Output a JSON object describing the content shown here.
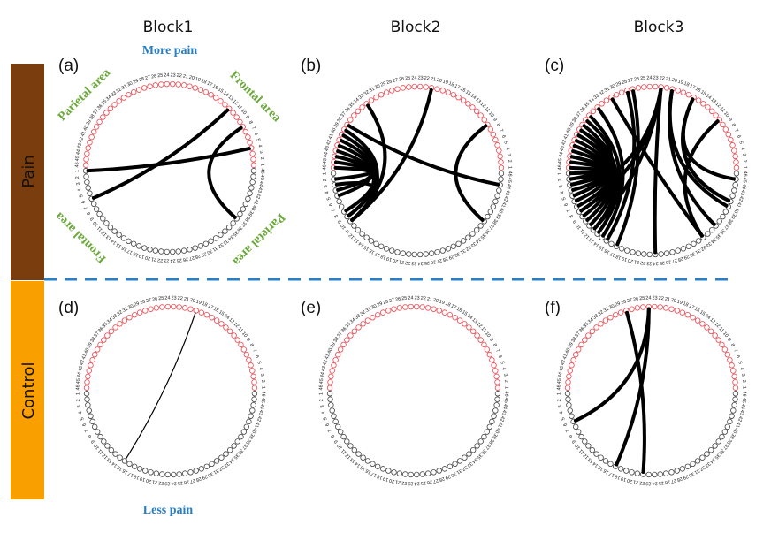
{
  "columns": [
    "Block1",
    "Block2",
    "Block3"
  ],
  "rows": [
    {
      "label": "Pain",
      "color": "#7a3e0e"
    },
    {
      "label": "Control",
      "color": "#f9a000"
    }
  ],
  "annotations": {
    "more_pain": "More pain",
    "less_pain": "Less pain",
    "parietal_left": "Parietal area",
    "frontal_right": "Frontal area",
    "frontal_left": "Frontal area",
    "parietal_right": "Parietal area"
  },
  "colors": {
    "separator": "#2a7fc4",
    "upper_hemisphere_nodes": "#e8474f",
    "lower_hemisphere_nodes": "#444444",
    "annotation_green": "#6aa83a",
    "annotation_blue": "#2a7fc4"
  },
  "nodes_per_hemisphere": 46,
  "panels": [
    {
      "label": "(a)",
      "edges": [
        [
          "R12",
          "B6"
        ],
        [
          "R4",
          "B1"
        ],
        [
          "R8",
          "B37"
        ]
      ]
    },
    {
      "label": "(b)",
      "edges": [
        [
          "R21",
          "B10"
        ],
        [
          "R33",
          "B10"
        ],
        [
          "R38",
          "B44"
        ],
        [
          "R9",
          "B37"
        ],
        [
          "R40",
          "B10"
        ],
        [
          "R41",
          "B10"
        ],
        [
          "R42",
          "B9"
        ],
        [
          "R43",
          "B10"
        ],
        [
          "R44",
          "B8"
        ],
        [
          "R45",
          "B4"
        ],
        [
          "R46",
          "B2"
        ],
        [
          "B3",
          "B10"
        ],
        [
          "R44",
          "B5"
        ],
        [
          "R39",
          "B9"
        ]
      ]
    },
    {
      "label": "(c)",
      "edges": [
        [
          "R22",
          "B24"
        ],
        [
          "R22",
          "B12"
        ],
        [
          "R22",
          "B8"
        ],
        [
          "R22",
          "B5"
        ],
        [
          "R20",
          "B36"
        ],
        [
          "R16",
          "B41"
        ],
        [
          "R16",
          "B45"
        ],
        [
          "R10",
          "B33"
        ],
        [
          "R31",
          "B33"
        ],
        [
          "R28",
          "B15"
        ],
        [
          "R27",
          "B17"
        ],
        [
          "R34",
          "B14"
        ],
        [
          "R36",
          "B13"
        ],
        [
          "R38",
          "B12"
        ],
        [
          "R39",
          "B11"
        ],
        [
          "R40",
          "B10"
        ],
        [
          "R41",
          "B8"
        ],
        [
          "R42",
          "B6"
        ],
        [
          "R43",
          "B4"
        ],
        [
          "R44",
          "B3"
        ],
        [
          "R45",
          "B2"
        ],
        [
          "R46",
          "B1"
        ],
        [
          "R44",
          "B7"
        ],
        [
          "R42",
          "B9"
        ],
        [
          "R40",
          "B5"
        ],
        [
          "R37",
          "B3"
        ],
        [
          "R39",
          "B2"
        ],
        [
          "R20",
          "B40"
        ]
      ]
    },
    {
      "label": "(d)",
      "edges": [
        [
          "R19",
          "B15"
        ]
      ],
      "thin": true
    },
    {
      "label": "(e)",
      "edges": []
    },
    {
      "label": "(f)",
      "edges": [
        [
          "R24",
          "B6"
        ],
        [
          "R24",
          "B17"
        ],
        [
          "R28",
          "B22"
        ]
      ]
    }
  ]
}
